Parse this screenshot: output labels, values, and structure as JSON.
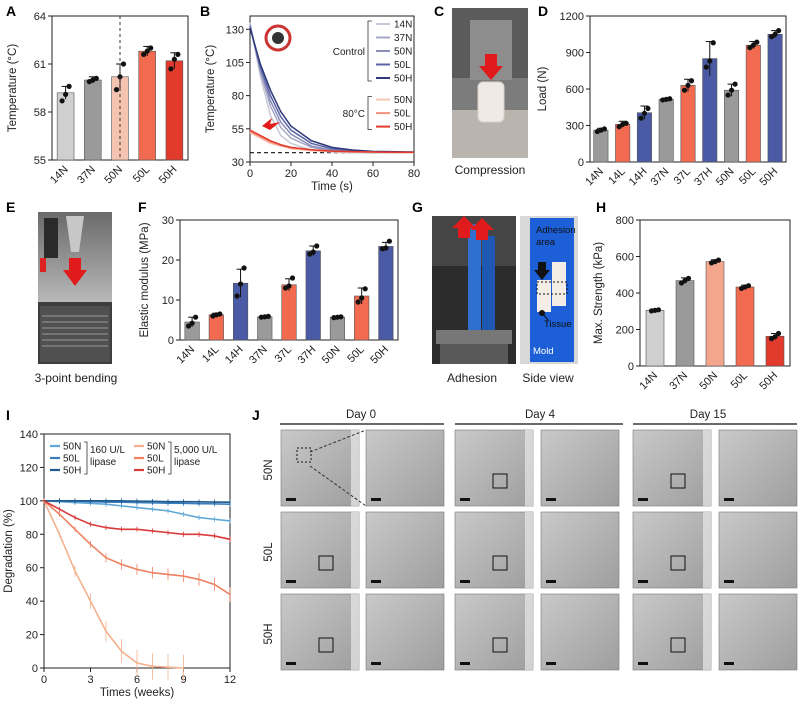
{
  "colors": {
    "light_gray": "#cfcfcf",
    "gray": "#9a9a9a",
    "peach": "#f4a68c",
    "salmon": "#f26a4f",
    "red": "#e23a2c",
    "blue": "#4b5aa5",
    "navy": "#2e3a7a",
    "deg_blue_light": "#5fa8d8",
    "deg_blue": "#3b7dbd",
    "deg_blue_dark": "#1e5a8e",
    "deg_peach": "#f5b08e",
    "deg_salmon": "#ef8060",
    "deg_red": "#d93a3a"
  },
  "chart_data": [
    {
      "id": "A",
      "type": "bar",
      "ylabel": "Temperature (°C)",
      "ylim": [
        55,
        64
      ],
      "yticks": [
        55,
        58,
        61,
        64
      ],
      "categories": [
        "14N",
        "37N",
        "50N",
        "50L",
        "50H"
      ],
      "values": [
        59.2,
        60.0,
        60.2,
        61.8,
        61.2
      ],
      "errors": [
        0.4,
        0.2,
        0.8,
        0.3,
        0.5
      ],
      "points": [
        [
          58.7,
          59.1,
          59.6
        ],
        [
          59.9,
          60.0,
          60.1
        ],
        [
          59.4,
          60.2,
          61.0
        ],
        [
          61.6,
          61.8,
          62.0
        ],
        [
          60.7,
          61.3,
          61.6
        ]
      ],
      "bar_colors": [
        "#cfcfcf",
        "#9a9a9a",
        "#f4c4b0",
        "#f26a4f",
        "#e23a2c"
      ],
      "dashed_after_index": 2
    },
    {
      "id": "B",
      "type": "line",
      "xlabel": "Time (s)",
      "ylabel": "Temperature (°C)",
      "xlim": [
        0,
        80
      ],
      "ylim": [
        30,
        140
      ],
      "xticks": [
        0,
        20,
        40,
        60,
        80
      ],
      "yticks": [
        30,
        55,
        80,
        105,
        130
      ],
      "reference_line": 37,
      "legend_groups": [
        {
          "title": "Control",
          "items": [
            "14N",
            "37N",
            "50N",
            "50L",
            "50H"
          ]
        },
        {
          "title": "80°C",
          "items": [
            "50N",
            "50L",
            "50H"
          ]
        }
      ],
      "series": [
        {
          "name": "14N",
          "group": "Control",
          "color": "#c8c8d8",
          "x": [
            0,
            5,
            10,
            15,
            20,
            30,
            40,
            50,
            60,
            80
          ],
          "y": [
            135,
            95,
            65,
            50,
            44,
            39,
            37.5,
            37,
            37,
            37
          ]
        },
        {
          "name": "37N",
          "group": "Control",
          "color": "#a6a8c6",
          "x": [
            0,
            5,
            10,
            15,
            20,
            30,
            40,
            50,
            60,
            80
          ],
          "y": [
            134,
            98,
            72,
            56,
            48,
            41,
            38.5,
            37.5,
            37,
            37
          ]
        },
        {
          "name": "50N",
          "group": "Control",
          "color": "#8a8eb8",
          "x": [
            0,
            5,
            10,
            15,
            20,
            30,
            40,
            50,
            60,
            80
          ],
          "y": [
            133,
            100,
            76,
            60,
            51,
            42,
            39,
            38,
            37.5,
            37
          ]
        },
        {
          "name": "50L",
          "group": "Control",
          "color": "#5a64a6",
          "x": [
            0,
            5,
            10,
            15,
            20,
            30,
            40,
            50,
            60,
            80
          ],
          "y": [
            132,
            102,
            80,
            64,
            54,
            44,
            40,
            38.5,
            37.5,
            37
          ]
        },
        {
          "name": "50H",
          "group": "Control",
          "color": "#2e3a7a",
          "x": [
            0,
            5,
            10,
            15,
            20,
            30,
            40,
            50,
            60,
            80
          ],
          "y": [
            131,
            104,
            84,
            68,
            57,
            46,
            41,
            39,
            38,
            37.5
          ]
        },
        {
          "name": "50N",
          "group": "80°C",
          "color": "#f8c6b4",
          "x": [
            0,
            5,
            10,
            15,
            20,
            30,
            40,
            50,
            60,
            80
          ],
          "y": [
            52,
            48,
            44,
            42,
            40,
            38.5,
            37.8,
            37.5,
            37.3,
            37
          ]
        },
        {
          "name": "50L",
          "group": "80°C",
          "color": "#f2917a",
          "x": [
            0,
            5,
            10,
            15,
            20,
            30,
            40,
            50,
            60,
            80
          ],
          "y": [
            53,
            49,
            45,
            42.5,
            40.5,
            39,
            38,
            37.6,
            37.4,
            37.2
          ]
        },
        {
          "name": "50H",
          "group": "80°C",
          "color": "#e23a2c",
          "x": [
            0,
            5,
            10,
            15,
            20,
            30,
            40,
            50,
            60,
            80
          ],
          "y": [
            54,
            50,
            46,
            43,
            41,
            39.2,
            38.2,
            37.8,
            37.5,
            37.3
          ]
        }
      ]
    },
    {
      "id": "D",
      "type": "bar",
      "ylabel": "Load (N)",
      "ylim": [
        0,
        1200
      ],
      "yticks": [
        0,
        300,
        600,
        900,
        1200
      ],
      "categories": [
        "14N",
        "14L",
        "14H",
        "37N",
        "37L",
        "37H",
        "50N",
        "50L",
        "50H"
      ],
      "values": [
        262,
        310,
        405,
        515,
        630,
        850,
        590,
        960,
        1050
      ],
      "errors": [
        15,
        25,
        55,
        8,
        50,
        140,
        50,
        30,
        30
      ],
      "points": [
        [
          250,
          262,
          272
        ],
        [
          290,
          310,
          318
        ],
        [
          360,
          400,
          440
        ],
        [
          510,
          515,
          520
        ],
        [
          590,
          630,
          668
        ],
        [
          780,
          830,
          980
        ],
        [
          550,
          590,
          640
        ],
        [
          940,
          960,
          985
        ],
        [
          1030,
          1050,
          1080
        ]
      ],
      "bar_colors": [
        "#9a9a9a",
        "#f26a4f",
        "#4b5aa5",
        "#9a9a9a",
        "#f26a4f",
        "#4b5aa5",
        "#9a9a9a",
        "#f26a4f",
        "#4b5aa5"
      ]
    },
    {
      "id": "F",
      "type": "bar",
      "ylabel": "Elastic modulus (MPa)",
      "ylim": [
        0,
        30
      ],
      "yticks": [
        0,
        10,
        20,
        30
      ],
      "categories": [
        "14N",
        "14L",
        "14H",
        "37N",
        "37L",
        "37H",
        "50N",
        "50L",
        "50H"
      ],
      "values": [
        4.5,
        6.3,
        14.2,
        5.8,
        13.8,
        22.3,
        5.7,
        11.0,
        23.4
      ],
      "errors": [
        1.2,
        0.4,
        3.5,
        0.2,
        1.5,
        1.2,
        0.1,
        2.0,
        1.0
      ],
      "points": [
        [
          3.5,
          4.2,
          5.7
        ],
        [
          6.0,
          6.3,
          6.5
        ],
        [
          11.0,
          14.0,
          18.0
        ],
        [
          5.7,
          5.8,
          5.9
        ],
        [
          13.0,
          13.5,
          15.5
        ],
        [
          21.5,
          22.0,
          23.5
        ],
        [
          5.6,
          5.7,
          5.8
        ],
        [
          9.5,
          10.5,
          12.8
        ],
        [
          22.8,
          23.0,
          24.7
        ]
      ],
      "bar_colors": [
        "#9a9a9a",
        "#f26a4f",
        "#4b5aa5",
        "#9a9a9a",
        "#f26a4f",
        "#4b5aa5",
        "#9a9a9a",
        "#f26a4f",
        "#4b5aa5"
      ]
    },
    {
      "id": "H",
      "type": "bar",
      "ylabel": "Max. Strength (kPa)",
      "ylim": [
        0,
        800
      ],
      "yticks": [
        0,
        200,
        400,
        600,
        800
      ],
      "categories": [
        "14N",
        "37N",
        "50N",
        "50L",
        "50H"
      ],
      "values": [
        305,
        468,
        572,
        433,
        163
      ],
      "errors": [
        4,
        15,
        10,
        10,
        15
      ],
      "points": [
        [
          302,
          305,
          308
        ],
        [
          455,
          468,
          480
        ],
        [
          565,
          572,
          580
        ],
        [
          425,
          433,
          440
        ],
        [
          150,
          160,
          178
        ]
      ],
      "bar_colors": [
        "#cfcfcf",
        "#9a9a9a",
        "#f4a68c",
        "#f26a4f",
        "#e23a2c"
      ]
    },
    {
      "id": "I",
      "type": "line",
      "xlabel": "Times (weeks)",
      "ylabel": "Degradation (%)",
      "xlim": [
        0,
        12
      ],
      "ylim": [
        0,
        140
      ],
      "xticks": [
        0,
        3,
        6,
        9,
        12
      ],
      "yticks": [
        0,
        20,
        40,
        60,
        80,
        100,
        120,
        140
      ],
      "legend_groups": [
        {
          "title": "160 U/L\nlipase",
          "items": [
            "50N",
            "50L",
            "50H"
          ]
        },
        {
          "title": "5,000 U/L\nlipase",
          "items": [
            "50N",
            "50L",
            "50H"
          ]
        }
      ],
      "series": [
        {
          "name": "50N",
          "group": "160 U/L lipase",
          "color": "#5fa8d8",
          "x": [
            0,
            1,
            2,
            3,
            4,
            5,
            6,
            7,
            8,
            9,
            10,
            11,
            12
          ],
          "y": [
            100,
            99.5,
            99,
            98.5,
            98,
            97,
            96,
            95,
            94,
            92,
            90,
            89,
            88
          ]
        },
        {
          "name": "50L",
          "group": "160 U/L lipase",
          "color": "#3b7dbd",
          "x": [
            0,
            1,
            2,
            3,
            4,
            5,
            6,
            7,
            8,
            9,
            10,
            11,
            12
          ],
          "y": [
            100,
            100,
            99.8,
            99.5,
            99.3,
            99.2,
            99,
            98.8,
            98.6,
            98.5,
            98.3,
            98.2,
            98
          ]
        },
        {
          "name": "50H",
          "group": "160 U/L lipase",
          "color": "#1e5a8e",
          "x": [
            0,
            1,
            2,
            3,
            4,
            5,
            6,
            7,
            8,
            9,
            10,
            11,
            12
          ],
          "y": [
            100,
            100,
            100,
            100,
            100,
            100,
            99.8,
            99.7,
            99.5,
            99.5,
            99.4,
            99.3,
            99.2
          ]
        },
        {
          "name": "50N",
          "group": "5,000 U/L lipase",
          "color": "#f5b08e",
          "x": [
            0,
            1,
            2,
            3,
            4,
            5,
            6,
            7,
            8,
            9
          ],
          "y": [
            100,
            80,
            58,
            40,
            22,
            10,
            3,
            1,
            0.5,
            0
          ]
        },
        {
          "name": "50L",
          "group": "5,000 U/L lipase",
          "color": "#ef8060",
          "x": [
            0,
            1,
            2,
            3,
            4,
            5,
            6,
            7,
            8,
            9,
            10,
            11,
            12
          ],
          "y": [
            100,
            92,
            83,
            74,
            66,
            62,
            59,
            57,
            56,
            55,
            53,
            50,
            44
          ]
        },
        {
          "name": "50H",
          "group": "5,000 U/L lipase",
          "color": "#d93a3a",
          "x": [
            0,
            1,
            2,
            3,
            4,
            5,
            6,
            7,
            8,
            9,
            10,
            11,
            12
          ],
          "y": [
            100,
            95,
            90,
            86,
            84,
            83,
            83,
            82,
            81,
            80,
            80,
            79,
            77
          ]
        }
      ]
    }
  ],
  "panels": {
    "labels": [
      "A",
      "B",
      "C",
      "D",
      "E",
      "F",
      "G",
      "H",
      "I",
      "J"
    ],
    "C": {
      "caption": "Compression"
    },
    "E": {
      "caption": "3-point bending"
    },
    "G": {
      "caption_left": "Adhesion",
      "caption_right": "Side view",
      "adhesion_area": "Adhesion\narea",
      "tissue": "Tissue",
      "mold": "Mold"
    },
    "J": {
      "columns": [
        "Day 0",
        "Day 4",
        "Day 15"
      ],
      "rows": [
        "50N",
        "50L",
        "50H"
      ]
    }
  }
}
